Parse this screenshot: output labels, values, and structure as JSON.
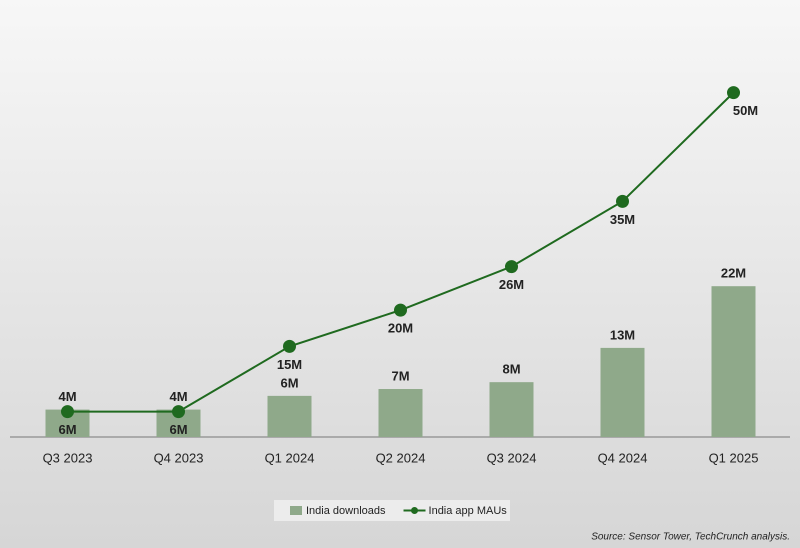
{
  "chart_data": {
    "type": "bar-line",
    "categories": [
      "Q3 2023",
      "Q4 2023",
      "Q1 2024",
      "Q2 2024",
      "Q3 2024",
      "Q4 2024",
      "Q1 2025"
    ],
    "series": [
      {
        "name": "India downloads",
        "type": "bar",
        "color": "#8fa98a",
        "values": [
          4,
          4,
          6,
          7,
          8,
          13,
          22
        ],
        "value_labels": [
          "4M",
          "4M",
          "6M",
          "7M",
          "8M",
          "13M",
          "22M"
        ]
      },
      {
        "name": "India app MAUs",
        "type": "line",
        "axis": "y2",
        "color": "#1f6a1f",
        "values": [
          6,
          6,
          15,
          20,
          26,
          35,
          50
        ],
        "value_labels": [
          "6M",
          "6M",
          "15M",
          "20M",
          "26M",
          "35M",
          "50M"
        ]
      }
    ],
    "ylim": [
      0,
      55
    ],
    "y2lim": [
      2.5,
      54.5
    ],
    "legend": "bottom",
    "source": "Source: Sensor Tower, TechCrunch analysis."
  }
}
